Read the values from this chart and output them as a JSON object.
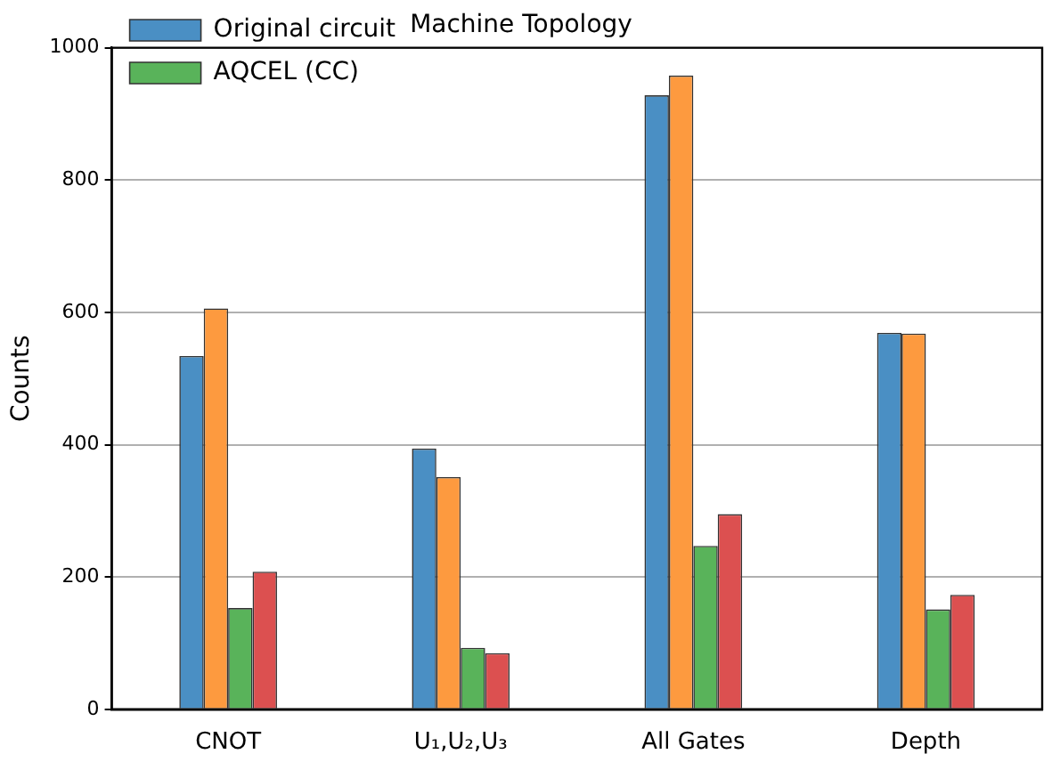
{
  "chart_data": {
    "type": "bar",
    "title": "Machine Topology",
    "ylabel": "Counts",
    "categories": [
      "CNOT",
      "U₁,U₂,U₃",
      "All Gates",
      "Depth"
    ],
    "series": [
      {
        "name": "Original circuit",
        "color": "#4a8fc4",
        "values": [
          534,
          394,
          928,
          569
        ]
      },
      {
        "color": "#fd9a3f",
        "values": [
          606,
          351,
          958,
          568
        ]
      },
      {
        "name": "AQCEL (CC)",
        "color": "#59b35a",
        "values": [
          153,
          93,
          247,
          151
        ]
      },
      {
        "color": "#dc5050",
        "values": [
          208,
          85,
          295,
          173
        ]
      }
    ],
    "ylim": [
      0,
      1000
    ],
    "yticks": [
      0,
      200,
      400,
      600,
      800,
      1000
    ],
    "grid": "y",
    "legend": "top left"
  }
}
